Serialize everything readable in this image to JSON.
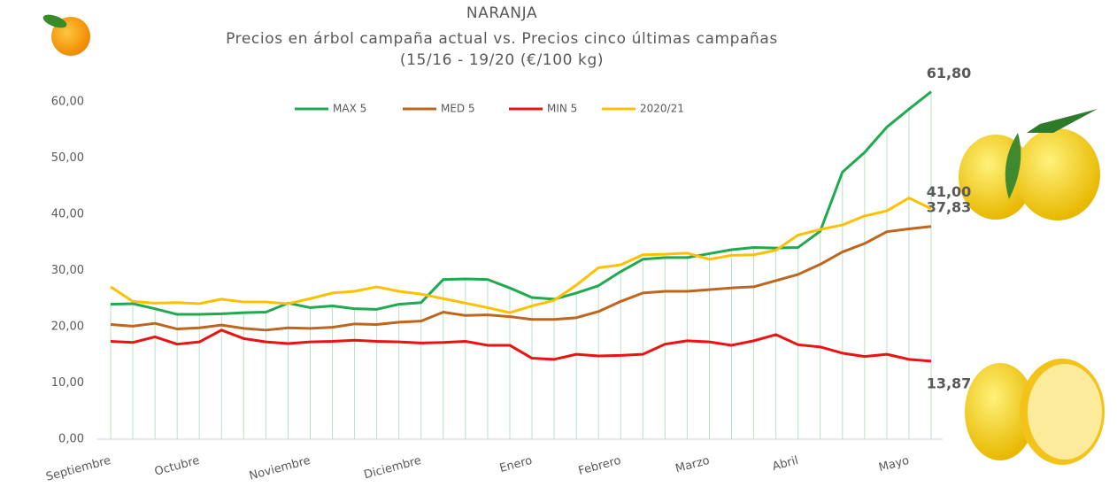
{
  "chart_data": {
    "type": "line",
    "title": "NARANJA",
    "subtitle": [
      "Precios en árbol campaña actual vs. Precios cinco últimas campañas",
      "(15/16 - 19/20 (€/100 kg)"
    ],
    "categories": [
      "Septiembre",
      null,
      null,
      null,
      "Octubre",
      null,
      null,
      null,
      null,
      "Noviembre",
      null,
      null,
      null,
      null,
      "Diciembre",
      null,
      null,
      null,
      null,
      "Enero",
      null,
      null,
      null,
      "Febrero",
      null,
      null,
      null,
      "Marzo",
      null,
      null,
      null,
      "Abril",
      null,
      null,
      null,
      null,
      "Mayo",
      null
    ],
    "series": [
      {
        "name": "MAX 5",
        "color": "#1faa50",
        "values": [
          24.0,
          24.1,
          23.2,
          22.2,
          22.2,
          22.3,
          22.5,
          22.6,
          24.2,
          23.4,
          23.7,
          23.2,
          23.1,
          24.0,
          24.3,
          28.4,
          28.5,
          28.4,
          26.9,
          25.2,
          24.9,
          26.0,
          27.3,
          29.8,
          32.0,
          32.3,
          32.3,
          33.0,
          33.7,
          34.1,
          34.0,
          34.1,
          37.0,
          47.5,
          51.0,
          55.5,
          58.7,
          61.8
        ],
        "value_labels": [
          null,
          null,
          null,
          null,
          null,
          null,
          null,
          null,
          null,
          null,
          null,
          null,
          null,
          null,
          null,
          null,
          null,
          null,
          null,
          null,
          null,
          null,
          null,
          null,
          null,
          null,
          null,
          null,
          null,
          null,
          null,
          null,
          null,
          null,
          null,
          null,
          null,
          "61,80"
        ]
      },
      {
        "name": "MED 5",
        "color": "#c0651e",
        "values": [
          20.4,
          20.1,
          20.6,
          19.6,
          19.8,
          20.3,
          19.7,
          19.4,
          19.8,
          19.7,
          19.9,
          20.5,
          20.4,
          20.8,
          21.0,
          22.6,
          22.0,
          22.1,
          21.8,
          21.3,
          21.3,
          21.6,
          22.7,
          24.5,
          26.0,
          26.3,
          26.3,
          26.6,
          26.9,
          27.1,
          28.2,
          29.3,
          31.1,
          33.3,
          34.8,
          36.9,
          37.4,
          37.83
        ],
        "value_labels": [
          null,
          null,
          null,
          null,
          null,
          null,
          null,
          null,
          null,
          null,
          null,
          null,
          null,
          null,
          null,
          null,
          null,
          null,
          null,
          null,
          null,
          null,
          null,
          null,
          null,
          null,
          null,
          null,
          null,
          null,
          null,
          null,
          null,
          null,
          null,
          null,
          null,
          "37,83"
        ]
      },
      {
        "name": "MIN 5",
        "color": "#ee1111",
        "values": [
          17.4,
          17.2,
          18.2,
          16.9,
          17.3,
          19.4,
          17.9,
          17.3,
          17.0,
          17.3,
          17.4,
          17.6,
          17.4,
          17.3,
          17.1,
          17.2,
          17.4,
          16.7,
          16.7,
          14.4,
          14.2,
          15.1,
          14.8,
          14.9,
          15.1,
          16.9,
          17.5,
          17.3,
          16.7,
          17.5,
          18.6,
          16.8,
          16.4,
          15.3,
          14.7,
          15.1,
          14.2,
          13.87
        ],
        "value_labels": [
          null,
          null,
          null,
          null,
          null,
          null,
          null,
          null,
          null,
          null,
          null,
          null,
          null,
          null,
          null,
          null,
          null,
          null,
          null,
          null,
          null,
          null,
          null,
          null,
          null,
          null,
          null,
          null,
          null,
          null,
          null,
          null,
          null,
          null,
          null,
          null,
          null,
          "13,87"
        ]
      },
      {
        "name": "2020/21",
        "color": "#ffc000",
        "values": [
          27.1,
          24.5,
          24.2,
          24.3,
          24.1,
          24.9,
          24.4,
          24.4,
          24.1,
          25.0,
          26.0,
          26.3,
          27.1,
          26.3,
          25.8,
          25.0,
          24.2,
          23.4,
          22.5,
          23.7,
          24.7,
          27.4,
          30.5,
          31.0,
          32.8,
          32.9,
          33.1,
          32.0,
          32.7,
          32.8,
          33.6,
          36.3,
          37.3,
          38.1,
          39.7,
          40.6,
          42.9,
          41.0
        ],
        "value_labels": [
          null,
          null,
          null,
          null,
          null,
          null,
          null,
          null,
          null,
          null,
          null,
          null,
          null,
          null,
          null,
          null,
          null,
          null,
          null,
          null,
          null,
          null,
          null,
          null,
          null,
          null,
          null,
          null,
          null,
          null,
          null,
          null,
          null,
          null,
          null,
          null,
          null,
          "41,00"
        ]
      }
    ],
    "ylim": [
      0,
      70
    ],
    "yticks": [
      {
        "value": 0,
        "label": "0,00"
      },
      {
        "value": 10,
        "label": "10,00"
      },
      {
        "value": 20,
        "label": "20,00"
      },
      {
        "value": 30,
        "label": "30,00"
      },
      {
        "value": 40,
        "label": "40,00"
      },
      {
        "value": 50,
        "label": "50,00"
      },
      {
        "value": 60,
        "label": "60,00"
      }
    ],
    "legend": "top",
    "drop_lines": true
  }
}
